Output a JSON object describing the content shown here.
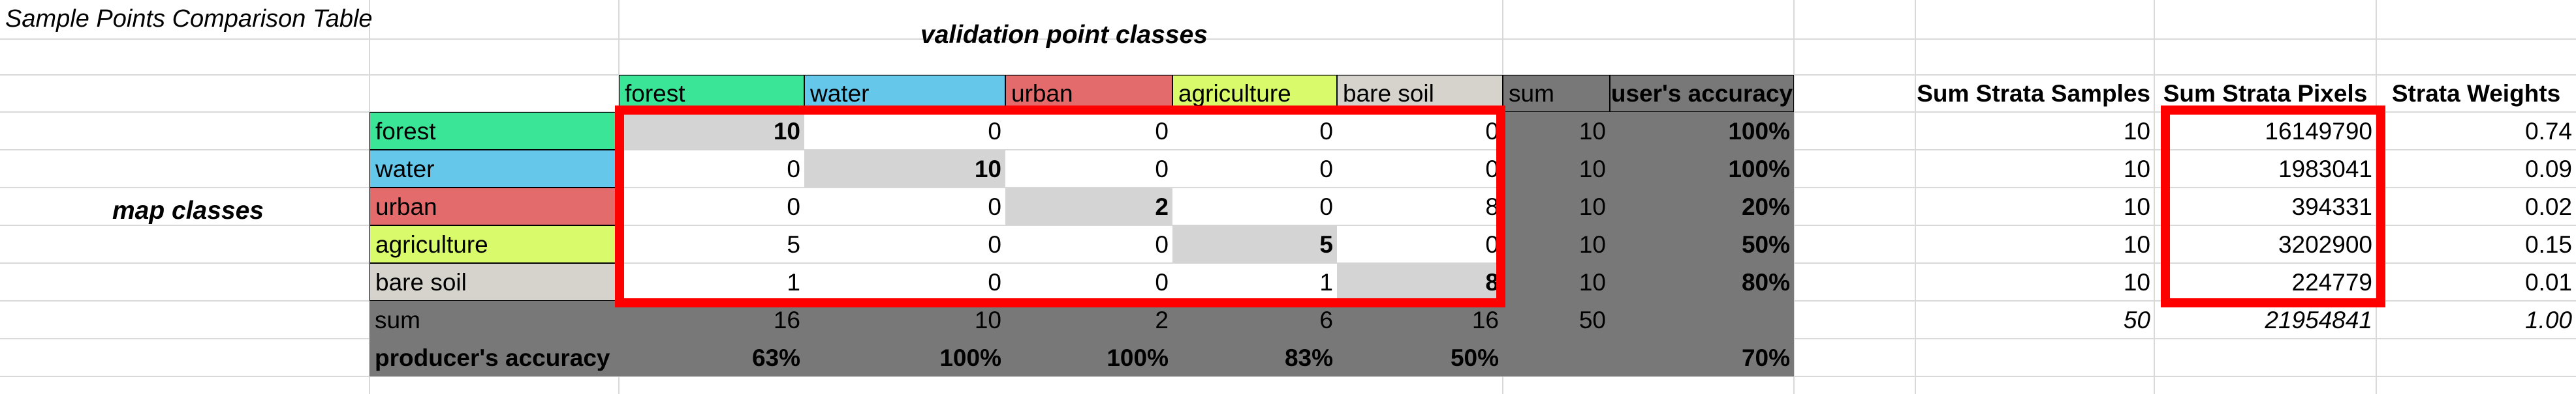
{
  "sheet": {
    "title": "Sample Points Comparison Table",
    "col_group_label": "validation point classes",
    "row_group_label": "map classes"
  },
  "colors": {
    "forest": "#3ae597",
    "water": "#65c8ea",
    "urban": "#e36b6b",
    "agriculture": "#d9fa6a",
    "bare_soil": "#d6d3cc",
    "summary_gray": "#787878",
    "diagonal": "#d4d4d4",
    "highlight": "#ff0000"
  },
  "matrix": {
    "col_headers": [
      "forest",
      "water",
      "urban",
      "agriculture",
      "bare soil"
    ],
    "sum_label": "sum",
    "users_accuracy_label": "user's accuracy",
    "producers_accuracy_label": "producer's accuracy",
    "rows": [
      {
        "label": "forest",
        "values": [
          "10",
          "0",
          "0",
          "0",
          "0"
        ],
        "sum": "10",
        "ua": "100%"
      },
      {
        "label": "water",
        "values": [
          "0",
          "10",
          "0",
          "0",
          "0"
        ],
        "sum": "10",
        "ua": "100%"
      },
      {
        "label": "urban",
        "values": [
          "0",
          "0",
          "2",
          "0",
          "8"
        ],
        "sum": "10",
        "ua": "20%"
      },
      {
        "label": "agriculture",
        "values": [
          "5",
          "0",
          "0",
          "5",
          "0"
        ],
        "sum": "10",
        "ua": "50%"
      },
      {
        "label": "bare soil",
        "values": [
          "1",
          "0",
          "0",
          "1",
          "8"
        ],
        "sum": "10",
        "ua": "80%"
      }
    ],
    "col_sums": [
      "16",
      "10",
      "2",
      "6",
      "16"
    ],
    "total": "50",
    "producers_accuracy": [
      "63%",
      "100%",
      "100%",
      "83%",
      "50%"
    ],
    "overall_accuracy": "70%"
  },
  "strata": {
    "headers": [
      "Sum Strata Samples",
      "Sum Strata Pixels",
      "Strata Weights"
    ],
    "rows": [
      [
        "10",
        "16149790",
        "0.74"
      ],
      [
        "10",
        "1983041",
        "0.09"
      ],
      [
        "10",
        "394331",
        "0.02"
      ],
      [
        "10",
        "3202900",
        "0.15"
      ],
      [
        "10",
        "224779",
        "0.01"
      ]
    ],
    "totals": [
      "50",
      "21954841",
      "1.00"
    ]
  }
}
